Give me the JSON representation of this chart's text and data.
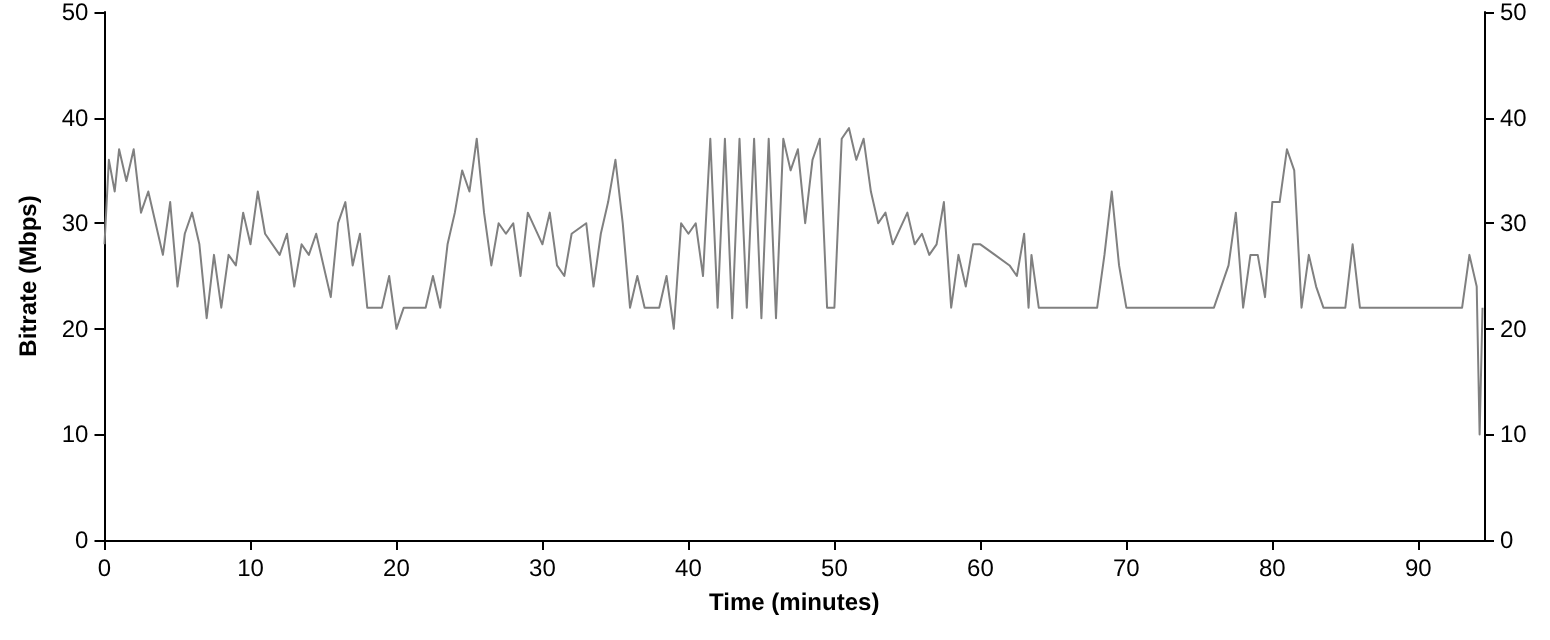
{
  "chart_data": {
    "type": "line",
    "xlabel": "Time (minutes)",
    "ylabel": "Bitrate (Mbps)",
    "xlim": [
      0,
      94.5
    ],
    "xticks": [
      0,
      10,
      20,
      30,
      40,
      50,
      60,
      70,
      80,
      90
    ],
    "ylim": [
      0,
      50
    ],
    "yticks": [
      0,
      10,
      20,
      30,
      40,
      50
    ],
    "y2lim": [
      0,
      50
    ],
    "y2ticks": [
      0,
      10,
      20,
      30,
      40,
      50
    ],
    "grid": false,
    "marker": "none",
    "line_style": "solid",
    "series": [
      {
        "color": "#808080",
        "x": [
          0,
          0.3,
          0.7,
          1,
          1.5,
          2,
          2.5,
          3,
          3.5,
          4,
          4.5,
          5,
          5.5,
          6,
          6.5,
          7,
          7.5,
          8,
          8.5,
          9,
          9.5,
          10,
          10.5,
          11,
          12,
          12.5,
          13,
          13.5,
          14,
          14.5,
          15,
          15.5,
          16,
          16.5,
          17,
          17.5,
          18,
          19,
          19.5,
          20,
          20.5,
          21,
          22,
          22.5,
          23,
          23.5,
          24,
          24.5,
          25,
          25.5,
          26,
          26.5,
          27,
          27.5,
          28,
          28.5,
          29,
          30,
          30.5,
          31,
          31.5,
          32,
          33,
          33.5,
          34,
          34.5,
          35,
          35.5,
          36,
          36.5,
          37,
          38,
          38.5,
          39,
          39.5,
          40,
          40.5,
          41,
          41.5,
          42,
          42.5,
          43,
          43.5,
          44,
          44.5,
          45,
          45.5,
          46,
          46.5,
          47,
          47.5,
          48,
          48.5,
          49,
          49.5,
          50,
          50.5,
          51,
          51.5,
          52,
          52.5,
          53,
          53.5,
          54,
          55,
          55.5,
          56,
          56.5,
          57,
          57.5,
          58,
          58.5,
          59,
          59.5,
          60,
          61,
          62,
          62.5,
          63,
          63.3,
          63.5,
          64,
          65,
          66,
          67,
          68,
          68.5,
          69,
          69.5,
          70,
          71,
          72,
          73,
          74,
          75,
          76,
          77,
          77.5,
          78,
          78.5,
          79,
          79.5,
          80,
          80.5,
          81,
          81.5,
          82,
          82.5,
          83,
          83.5,
          84,
          85,
          85.5,
          86,
          87,
          88,
          89,
          90,
          91,
          92,
          93,
          93.5,
          94,
          94.2,
          94.4
        ],
        "values": [
          28,
          36,
          33,
          37,
          34,
          37,
          31,
          33,
          30,
          27,
          32,
          24,
          29,
          31,
          28,
          21,
          27,
          22,
          27,
          26,
          31,
          28,
          33,
          29,
          27,
          29,
          24,
          28,
          27,
          29,
          26,
          23,
          30,
          32,
          26,
          29,
          22,
          22,
          25,
          20,
          22,
          22,
          22,
          25,
          22,
          28,
          31,
          35,
          33,
          38,
          31,
          26,
          30,
          29,
          30,
          25,
          31,
          28,
          31,
          26,
          25,
          29,
          30,
          24,
          29,
          32,
          36,
          30,
          22,
          25,
          22,
          22,
          25,
          20,
          30,
          29,
          30,
          25,
          38,
          22,
          38,
          21,
          38,
          22,
          38,
          21,
          38,
          21,
          38,
          35,
          37,
          30,
          36,
          38,
          22,
          22,
          38,
          39,
          36,
          38,
          33,
          30,
          31,
          28,
          31,
          28,
          29,
          27,
          28,
          32,
          22,
          27,
          24,
          28,
          28,
          27,
          26,
          25,
          29,
          22,
          27,
          22,
          22,
          22,
          22,
          22,
          27,
          33,
          26,
          22,
          22,
          22,
          22,
          22,
          22,
          22,
          26,
          31,
          22,
          27,
          27,
          23,
          32,
          32,
          37,
          35,
          22,
          27,
          24,
          22,
          22,
          22,
          28,
          22,
          22,
          22,
          22,
          22,
          22,
          22,
          22,
          27,
          24,
          10,
          22
        ]
      }
    ]
  }
}
